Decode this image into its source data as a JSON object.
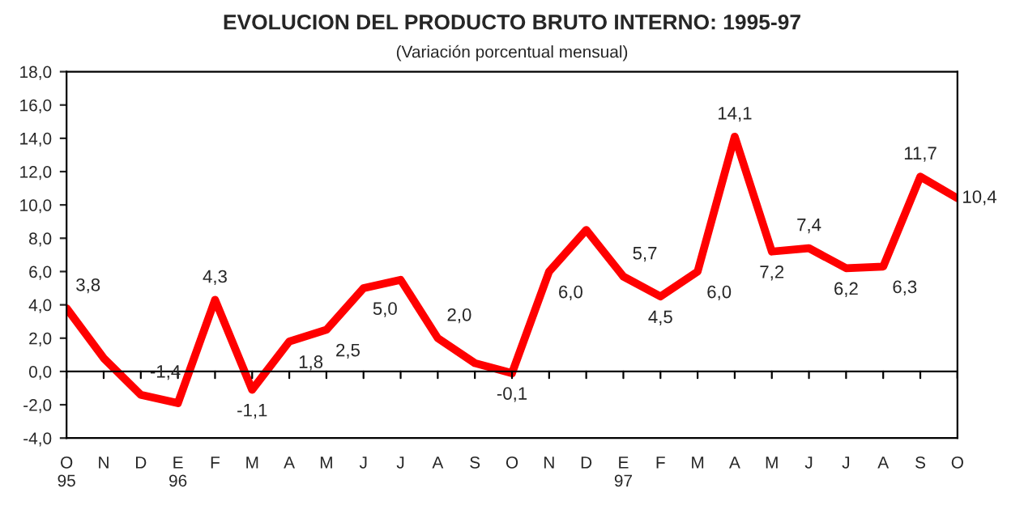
{
  "chart_data": {
    "type": "line",
    "title": "EVOLUCION DEL PRODUCTO BRUTO INTERNO: 1995-97",
    "subtitle": "(Variación porcentual mensual)",
    "categories": [
      "O\n95",
      "N",
      "D",
      "E\n96",
      "F",
      "M",
      "A",
      "M",
      "J",
      "J",
      "A",
      "S",
      "O",
      "N",
      "D",
      "E\n97",
      "F",
      "M",
      "A",
      "M",
      "J",
      "J",
      "A",
      "S",
      "O"
    ],
    "series": [
      {
        "color": "#ff0000",
        "values": [
          3.8,
          0.8,
          -1.4,
          -1.9,
          4.3,
          -1.1,
          1.8,
          2.5,
          5.0,
          5.5,
          2.0,
          0.5,
          -0.1,
          6.0,
          8.5,
          5.7,
          4.5,
          6.0,
          14.1,
          7.2,
          7.4,
          6.2,
          6.3,
          11.7,
          10.4
        ],
        "value_labels": [
          "3,8",
          null,
          "-1,4",
          null,
          "4,3",
          "-1,1",
          "1,8",
          "2,5",
          "5,0",
          null,
          "2,0",
          null,
          "-0,1",
          "6,0",
          null,
          "5,7",
          "4,5",
          "6,0",
          "14,1",
          "7,2",
          "7,4",
          "6,2",
          "6,3",
          "11,7",
          "10,4"
        ]
      }
    ],
    "ylim": [
      -4,
      18
    ],
    "yticks": [
      {
        "value": -4,
        "label": "-4,0"
      },
      {
        "value": -2,
        "label": "-2,0"
      },
      {
        "value": 0,
        "label": "0,0"
      },
      {
        "value": 2,
        "label": "2,0"
      },
      {
        "value": 4,
        "label": "4,0"
      },
      {
        "value": 6,
        "label": "6,0"
      },
      {
        "value": 8,
        "label": "8,0"
      },
      {
        "value": 10,
        "label": "10,0"
      },
      {
        "value": 12,
        "label": "12,0"
      },
      {
        "value": 14,
        "label": "14,0"
      },
      {
        "value": 16,
        "label": "16,0"
      },
      {
        "value": 18,
        "label": "18,0"
      }
    ],
    "ref_lines": [
      {
        "axis": "y",
        "value": 0,
        "color": "#000000"
      }
    ],
    "grid": false,
    "legend": false,
    "marker": "none",
    "line_style": "solid"
  }
}
